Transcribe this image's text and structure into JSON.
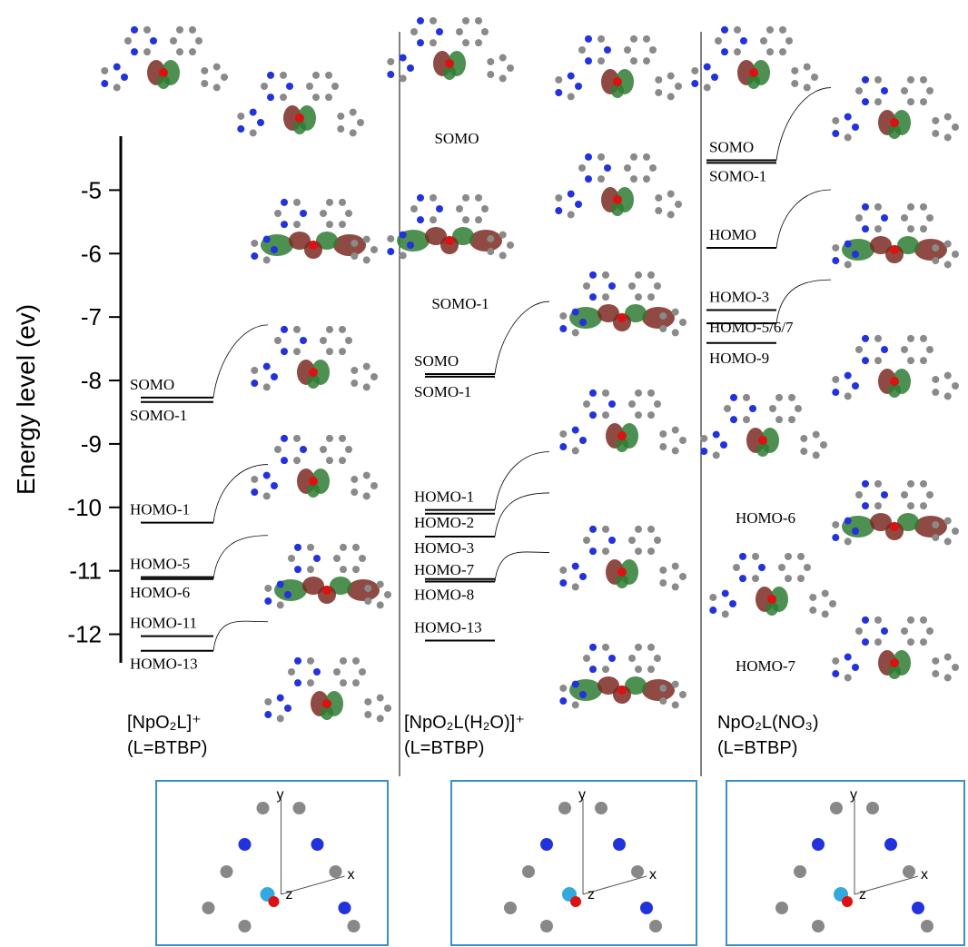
{
  "chart_data": {
    "type": "energy-level",
    "ylabel": "Energy level (ev)",
    "ylim": [
      -12.45,
      -4.15
    ],
    "yticks": [
      -5,
      -6,
      -7,
      -8,
      -9,
      -10,
      -11,
      -12
    ],
    "panels": [
      {
        "title": "[NpO₂L]⁺",
        "subtitle": "(L=BTBP)",
        "axis_labels": [
          "y",
          "x",
          "z"
        ],
        "levels": [
          {
            "name": "SOMO",
            "value": -8.27
          },
          {
            "name": "SOMO-1",
            "value": -8.34
          },
          {
            "name": "HOMO-1",
            "value": -10.24
          },
          {
            "name": "HOMO-5",
            "value": -11.1
          },
          {
            "name": "HOMO-6",
            "value": -11.13
          },
          {
            "name": "HOMO-11",
            "value": -12.03
          },
          {
            "name": "HOMO-13",
            "value": -12.26
          }
        ],
        "image_captions": []
      },
      {
        "title": "[NpO₂L(H₂O)]⁺",
        "subtitle": "(L=BTBP)",
        "axis_labels": [
          "y",
          "x",
          "z"
        ],
        "levels": [
          {
            "name": "SOMO",
            "value": -7.9
          },
          {
            "name": "SOMO-1",
            "value": -7.94
          },
          {
            "name": "HOMO-1",
            "value": -10.04
          },
          {
            "name": "HOMO-2",
            "value": -10.1
          },
          {
            "name": "HOMO-3",
            "value": -10.46
          },
          {
            "name": "HOMO-7",
            "value": -11.13
          },
          {
            "name": "HOMO-8",
            "value": -11.17
          },
          {
            "name": "HOMO-13",
            "value": -12.1
          }
        ],
        "image_captions": [
          "SOMO",
          "SOMO-1"
        ]
      },
      {
        "title": "NpO₂L(NO₃)",
        "subtitle": "(L=BTBP)",
        "axis_labels": [
          "y",
          "x",
          "z"
        ],
        "levels": [
          {
            "name": "SOMO",
            "value": -4.53
          },
          {
            "name": "SOMO-1",
            "value": -4.57
          },
          {
            "name": "HOMO",
            "value": -5.91
          },
          {
            "name": "HOMO-3",
            "value": -6.89
          },
          {
            "name": "HOMO-5/6/7",
            "value": -7.1
          },
          {
            "name": "HOMO-9",
            "value": -7.41
          }
        ],
        "image_captions": [
          "HOMO-6",
          "HOMO-7"
        ]
      }
    ]
  }
}
